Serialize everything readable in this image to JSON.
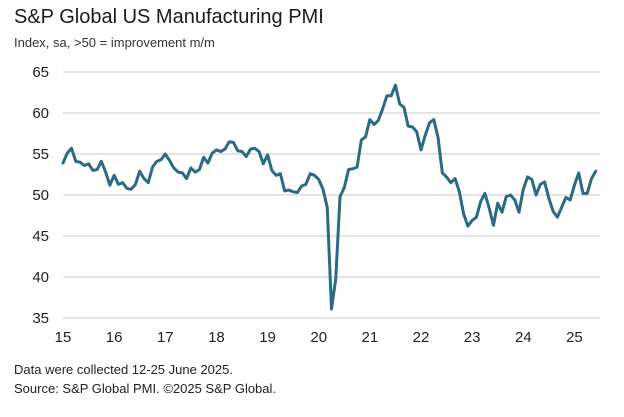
{
  "chart_data": {
    "type": "line",
    "title": "S&P Global US Manufacturing PMI",
    "subtitle": "Index, sa, >50 = improvement m/m",
    "xlabel": "",
    "ylabel": "",
    "ylim": [
      35,
      65
    ],
    "yticks": [
      35,
      40,
      45,
      50,
      55,
      60,
      65
    ],
    "xlim": [
      2015.0,
      2025.5
    ],
    "xtick_labels": [
      "15",
      "16",
      "17",
      "18",
      "19",
      "20",
      "21",
      "22",
      "23",
      "24",
      "25"
    ],
    "grid": "horizontal",
    "line_color": "#2a6b84",
    "series": [
      {
        "name": "S&P Global US Manufacturing PMI",
        "start": "2015-01",
        "frequency": "monthly",
        "values": [
          53.9,
          55.1,
          55.7,
          54.1,
          54.0,
          53.6,
          53.8,
          53.0,
          53.1,
          54.1,
          52.8,
          51.2,
          52.4,
          51.3,
          51.5,
          50.8,
          50.7,
          51.3,
          52.9,
          52.0,
          51.5,
          53.4,
          54.1,
          54.3,
          55.0,
          54.2,
          53.3,
          52.8,
          52.7,
          52.0,
          53.3,
          52.8,
          53.1,
          54.6,
          53.9,
          55.1,
          55.5,
          55.3,
          55.6,
          56.5,
          56.4,
          55.4,
          55.3,
          54.7,
          55.6,
          55.7,
          55.3,
          53.8,
          54.9,
          53.0,
          52.4,
          52.6,
          50.5,
          50.6,
          50.4,
          50.3,
          51.1,
          51.3,
          52.6,
          52.4,
          51.9,
          50.7,
          48.5,
          36.1,
          39.8,
          49.8,
          50.9,
          53.1,
          53.2,
          53.4,
          56.7,
          57.1,
          59.2,
          58.6,
          59.1,
          60.5,
          62.1,
          62.1,
          63.4,
          61.1,
          60.7,
          58.4,
          58.3,
          57.7,
          55.5,
          57.3,
          58.8,
          59.2,
          57.0,
          52.7,
          52.2,
          51.5,
          52.0,
          50.4,
          47.7,
          46.2,
          46.9,
          47.3,
          49.2,
          50.2,
          48.4,
          46.3,
          49.0,
          47.9,
          49.8,
          50.0,
          49.4,
          47.9,
          50.7,
          52.2,
          51.9,
          50.0,
          51.3,
          51.6,
          49.6,
          48.0,
          47.3,
          48.5,
          49.7,
          49.4,
          51.2,
          52.7,
          50.2,
          50.2,
          52.0,
          52.9
        ]
      }
    ]
  },
  "notes": {
    "line1": "Data were collected 12-25 June 2025.",
    "line2": "Source: S&P Global PMI. ©2025 S&P Global."
  }
}
